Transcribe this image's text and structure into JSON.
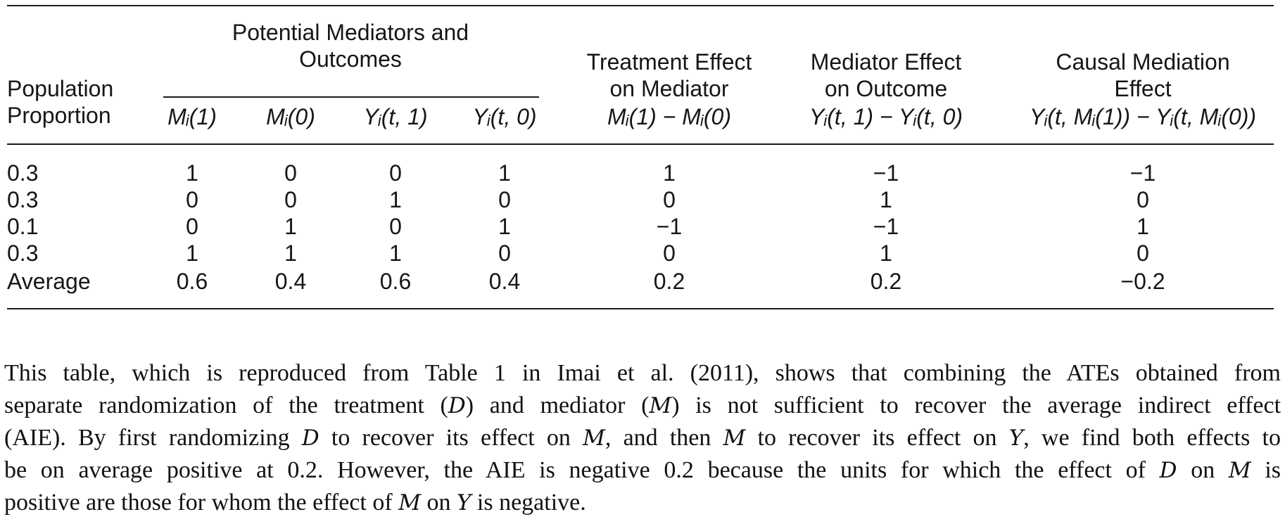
{
  "table": {
    "header": {
      "group_label_line1": "Potential Mediators and",
      "group_label_line2": "Outcomes",
      "pop_line1": "Population",
      "pop_line2": "Proportion",
      "m1": "Mᵢ(1)",
      "m0": "Mᵢ(0)",
      "yt1": "Yᵢ(t, 1)",
      "yt0": "Yᵢ(t, 0)",
      "te_line1": "Treatment Effect",
      "te_line2": "on Mediator",
      "te_line3": "Mᵢ(1) − Mᵢ(0)",
      "me_line1": "Mediator Effect",
      "me_line2": "on Outcome",
      "me_line3": "Yᵢ(t, 1) − Yᵢ(t, 0)",
      "cm_line1": "Causal Mediation",
      "cm_line2": "Effect",
      "cm_line3": "Yᵢ(t, Mᵢ(1)) − Yᵢ(t, Mᵢ(0))"
    },
    "rows": [
      [
        "0.3",
        "1",
        "0",
        "0",
        "1",
        "1",
        "−1",
        "−1"
      ],
      [
        "0.3",
        "0",
        "0",
        "1",
        "0",
        "0",
        "1",
        "0"
      ],
      [
        "0.1",
        "0",
        "1",
        "0",
        "1",
        "−1",
        "−1",
        "1"
      ],
      [
        "0.3",
        "1",
        "1",
        "1",
        "0",
        "0",
        "1",
        "0"
      ],
      [
        "Average",
        "0.6",
        "0.4",
        "0.6",
        "0.4",
        "0.2",
        "0.2",
        "−0.2"
      ]
    ]
  },
  "note": {
    "line1": "This table, which is reproduced from Table 1 in Imai et al. (2011), shows that combining the ATEs obtained from",
    "line2_a": "separate randomization of the treatment (",
    "line2_D": "D",
    "line2_b": ") and mediator (",
    "line2_M": "M",
    "line2_c": ") is not sufficient to recover the average indirect effect",
    "line3_a": "(AIE). By first randomizing ",
    "line3_D": "D",
    "line3_b": " to recover its effect on ",
    "line3_M": "M",
    "line3_c": ", and then ",
    "line3_M2": "M",
    "line3_d": " to recover its effect on ",
    "line3_Y": "Y",
    "line3_e": ", we find both effects to",
    "line4_a": "be on average positive at 0.2. However, the AIE is negative 0.2 because the units for which the effect of ",
    "line4_D": "D",
    "line4_b": " on ",
    "line4_M": "M",
    "line4_c": " is",
    "line5_a": "positive are those for whom the effect of ",
    "line5_M": "M",
    "line5_b": " on ",
    "line5_Y": "Y",
    "line5_c": " is negative."
  }
}
